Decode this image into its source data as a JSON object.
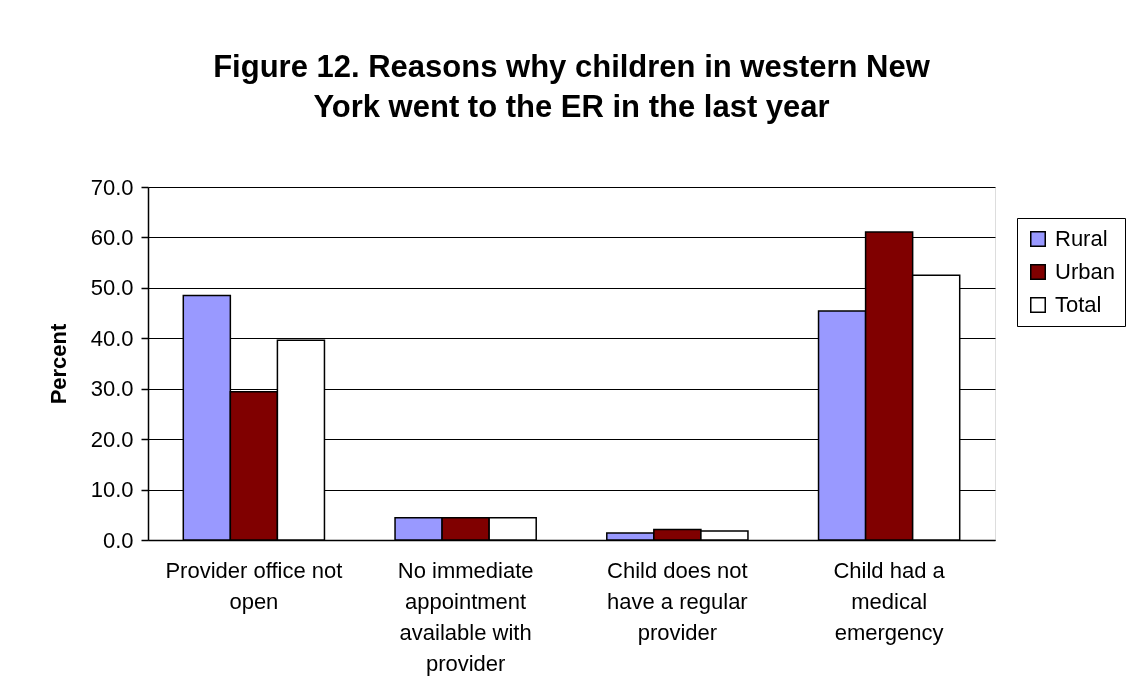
{
  "chart_data": {
    "type": "bar",
    "title": "Figure 12. Reasons why children in western New York went to the ER in the last year",
    "ylabel": "Percent",
    "categories": [
      "Provider office not open",
      "No immediate appointment available with provider",
      "Child does not have a regular provider",
      "Child had a medical emergency"
    ],
    "series": [
      {
        "name": "Rural",
        "color": "#9999ff",
        "values": [
          48.5,
          4.4,
          1.4,
          45.4
        ]
      },
      {
        "name": "Urban",
        "color": "#800000",
        "values": [
          29.4,
          4.4,
          2.1,
          61.1
        ]
      },
      {
        "name": "Total",
        "color": "#ffffff",
        "values": [
          39.6,
          4.4,
          1.8,
          52.5
        ]
      }
    ],
    "ylim": [
      0,
      70
    ],
    "yticks": [
      {
        "value": 0,
        "label": "0.0"
      },
      {
        "value": 10,
        "label": "10.0"
      },
      {
        "value": 20,
        "label": "20.0"
      },
      {
        "value": 30,
        "label": "30.0"
      },
      {
        "value": 40,
        "label": "40.0"
      },
      {
        "value": 50,
        "label": "50.0"
      },
      {
        "value": 60,
        "label": "60.0"
      },
      {
        "value": 70,
        "label": "70.0"
      }
    ],
    "grid": "y",
    "legend": "right"
  }
}
